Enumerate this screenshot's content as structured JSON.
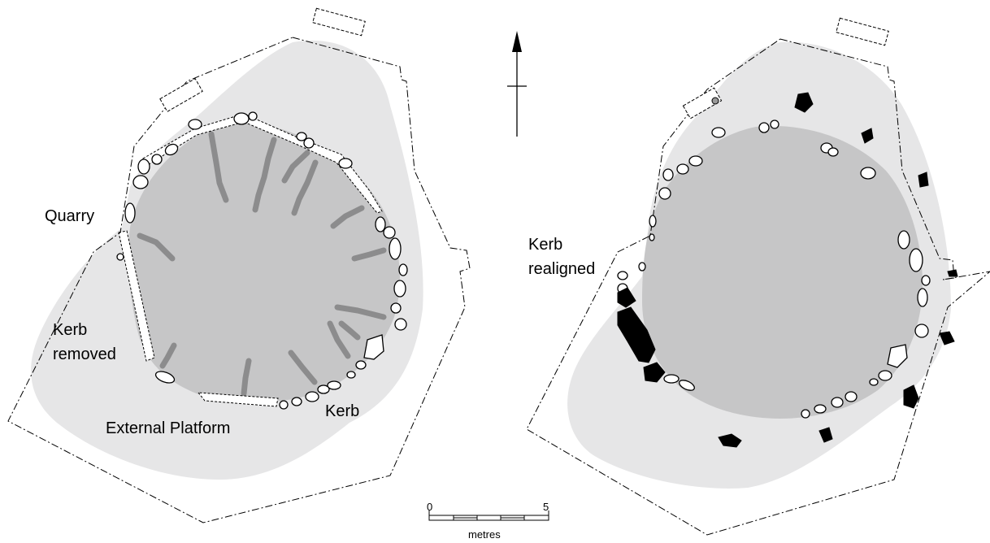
{
  "labels": {
    "quarry": "Quarry",
    "kerb_removed_line1": "Kerb",
    "kerb_removed_line2": "removed",
    "kerb": "Kerb",
    "external_platform": "External Platform",
    "kerb_realigned_line1": "Kerb",
    "kerb_realigned_line2": "realigned"
  },
  "scale_bar": {
    "start": "0",
    "end": "5",
    "unit": "metres"
  },
  "north_arrow": "north-arrow-icon",
  "colors": {
    "platform": "#e6e6e7",
    "cairn": "#c6c6c7",
    "streaks": "#8c8c8d",
    "kerb_stones": "#ffffff",
    "removed_stones": "#000000"
  }
}
